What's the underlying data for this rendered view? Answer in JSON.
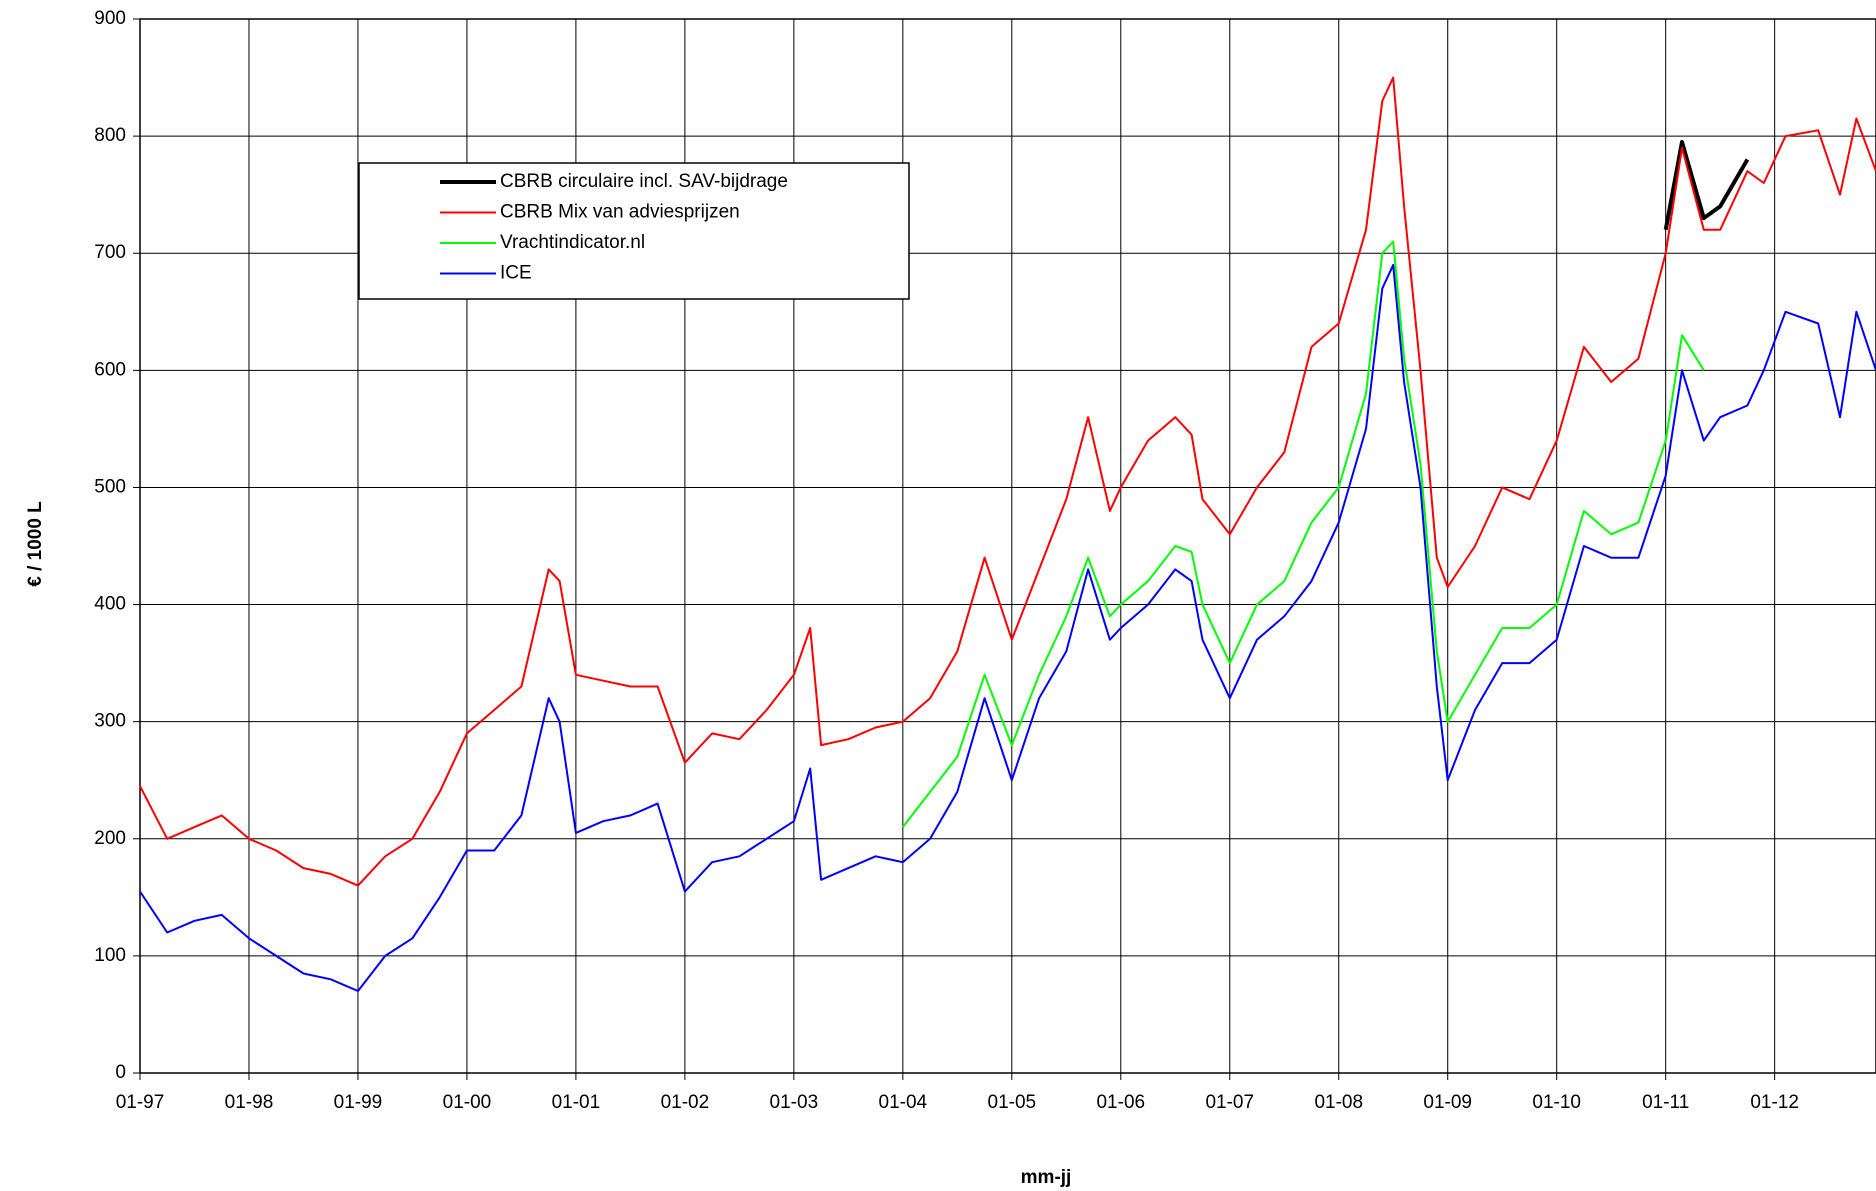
{
  "chart_data": {
    "type": "line",
    "xlabel": "mm-jj",
    "ylabel": "€ /  1000 L",
    "x": [
      1997.0,
      1997.25,
      1997.5,
      1997.75,
      1998.0,
      1998.25,
      1998.5,
      1998.75,
      1999.0,
      1999.25,
      1999.5,
      1999.75,
      2000.0,
      2000.25,
      2000.5,
      2000.75,
      2000.85,
      2001.0,
      2001.25,
      2001.5,
      2001.75,
      2002.0,
      2002.25,
      2002.5,
      2002.75,
      2003.0,
      2003.15,
      2003.25,
      2003.5,
      2003.75,
      2004.0,
      2004.25,
      2004.5,
      2004.75,
      2005.0,
      2005.25,
      2005.5,
      2005.7,
      2005.9,
      2006.0,
      2006.25,
      2006.5,
      2006.65,
      2006.75,
      2007.0,
      2007.25,
      2007.5,
      2007.75,
      2008.0,
      2008.25,
      2008.4,
      2008.5,
      2008.6,
      2008.75,
      2008.9,
      2009.0,
      2009.25,
      2009.5,
      2009.75,
      2010.0,
      2010.25,
      2010.5,
      2010.75,
      2011.0,
      2011.15,
      2011.35,
      2011.5,
      2011.75,
      2011.9,
      2012.1,
      2012.4,
      2012.6,
      2012.75,
      2012.93
    ],
    "series": [
      {
        "name": "CBRB circulaire incl. SAV-bijdrage",
        "color": "#000000",
        "width": 4,
        "values": [
          null,
          null,
          null,
          null,
          null,
          null,
          null,
          null,
          null,
          null,
          null,
          null,
          null,
          null,
          null,
          null,
          null,
          null,
          null,
          null,
          null,
          null,
          null,
          null,
          null,
          null,
          null,
          null,
          null,
          null,
          null,
          null,
          null,
          null,
          null,
          null,
          null,
          null,
          null,
          null,
          null,
          null,
          null,
          null,
          null,
          null,
          null,
          null,
          null,
          null,
          null,
          null,
          null,
          null,
          null,
          null,
          null,
          null,
          null,
          null,
          null,
          null,
          null,
          720,
          795,
          730,
          740,
          780,
          null,
          null,
          null,
          null,
          null,
          null
        ]
      },
      {
        "name": "CBRB Mix van adviesprijzen",
        "color": "#ff0000",
        "width": 2,
        "values": [
          245,
          200,
          210,
          220,
          200,
          190,
          175,
          170,
          160,
          185,
          200,
          240,
          290,
          310,
          330,
          430,
          420,
          340,
          335,
          330,
          330,
          265,
          290,
          285,
          310,
          340,
          380,
          280,
          285,
          295,
          300,
          320,
          360,
          440,
          370,
          430,
          490,
          560,
          480,
          500,
          540,
          560,
          545,
          490,
          460,
          500,
          530,
          620,
          640,
          720,
          830,
          850,
          740,
          600,
          440,
          415,
          450,
          500,
          490,
          540,
          620,
          590,
          610,
          700,
          790,
          720,
          720,
          770,
          760,
          800,
          805,
          750,
          815,
          770
        ]
      },
      {
        "name": "Vrachtindicator.nl",
        "color": "#00ff00",
        "width": 2,
        "values": [
          null,
          null,
          null,
          null,
          null,
          null,
          null,
          null,
          null,
          null,
          null,
          null,
          null,
          null,
          null,
          null,
          null,
          null,
          null,
          null,
          null,
          null,
          null,
          null,
          null,
          null,
          null,
          null,
          null,
          null,
          210,
          240,
          270,
          340,
          280,
          340,
          390,
          440,
          390,
          400,
          420,
          450,
          445,
          400,
          350,
          400,
          420,
          470,
          500,
          580,
          700,
          710,
          610,
          520,
          360,
          300,
          340,
          380,
          380,
          400,
          480,
          460,
          470,
          540,
          630,
          600,
          null,
          null,
          null,
          null,
          null,
          null,
          null,
          null
        ]
      },
      {
        "name": "ICE",
        "color": "#0000ff",
        "width": 2,
        "values": [
          155,
          120,
          130,
          135,
          115,
          100,
          85,
          80,
          70,
          100,
          115,
          150,
          190,
          190,
          220,
          320,
          300,
          205,
          215,
          220,
          230,
          155,
          180,
          185,
          200,
          215,
          260,
          165,
          175,
          185,
          180,
          200,
          240,
          320,
          250,
          320,
          360,
          430,
          370,
          380,
          400,
          430,
          420,
          370,
          320,
          370,
          390,
          420,
          470,
          550,
          670,
          690,
          590,
          500,
          330,
          250,
          310,
          350,
          350,
          370,
          450,
          440,
          440,
          510,
          600,
          540,
          560,
          570,
          600,
          650,
          640,
          560,
          650,
          600
        ]
      }
    ],
    "xlim": [
      1997,
      2012.93
    ],
    "xticks": [
      {
        "value": 1997,
        "label": "01-97"
      },
      {
        "value": 1998,
        "label": "01-98"
      },
      {
        "value": 1999,
        "label": "01-99"
      },
      {
        "value": 2000,
        "label": "01-00"
      },
      {
        "value": 2001,
        "label": "01-01"
      },
      {
        "value": 2002,
        "label": "01-02"
      },
      {
        "value": 2003,
        "label": "01-03"
      },
      {
        "value": 2004,
        "label": "01-04"
      },
      {
        "value": 2005,
        "label": "01-05"
      },
      {
        "value": 2006,
        "label": "01-06"
      },
      {
        "value": 2007,
        "label": "01-07"
      },
      {
        "value": 2008,
        "label": "01-08"
      },
      {
        "value": 2009,
        "label": "01-09"
      },
      {
        "value": 2010,
        "label": "01-10"
      },
      {
        "value": 2011,
        "label": "01-11"
      },
      {
        "value": 2012,
        "label": "01-12"
      }
    ],
    "ylim": [
      0,
      900
    ],
    "yticks": [
      0,
      100,
      200,
      300,
      400,
      500,
      600,
      700,
      800,
      900
    ],
    "grid": true,
    "legend": "upper left"
  }
}
